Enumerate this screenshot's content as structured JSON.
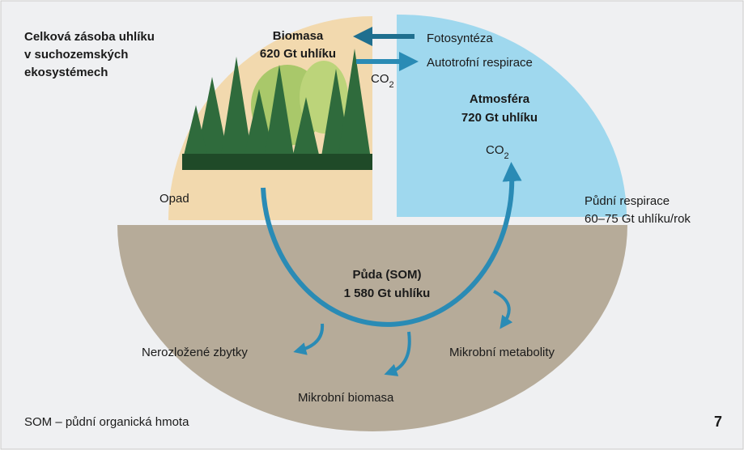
{
  "title": {
    "lines": [
      "Celková zásoba uhlíku",
      "v suchozemských",
      "ekosystémech"
    ]
  },
  "biomass": {
    "name": "Biomasa",
    "amount": "620 Gt uhlíku"
  },
  "photosynthesis": "Fotosyntéza",
  "autotrophic_respiration": "Autotrofní respirace",
  "co2_top": {
    "base": "CO",
    "sub": "2"
  },
  "atmosphere": {
    "name": "Atmosféra",
    "amount": "720 Gt uhlíku"
  },
  "co2_atmosphere": {
    "base": "CO",
    "sub": "2"
  },
  "litter": "Opad",
  "soil_respiration": {
    "name": "Půdní respirace",
    "amount": "60–75 Gt uhlíku/rok"
  },
  "soil": {
    "name": "Půda (SOM)",
    "amount": "1 580 Gt uhlíku"
  },
  "undecomposed": "Nerozložené zbytky",
  "microbial_biomass": "Mikrobní biomasa",
  "microbial_metabolites": "Mikrobní metabolity",
  "footnote": "SOM – půdní organická hmota",
  "page_number": "7"
}
